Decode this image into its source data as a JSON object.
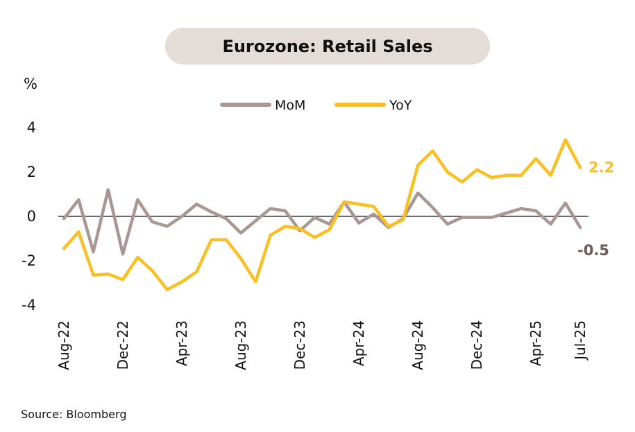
{
  "chart_data": {
    "type": "line",
    "title": "Eurozone: Retail Sales",
    "ylabel": "%",
    "ylim": [
      -4,
      4
    ],
    "yticks": [
      "4",
      "2",
      "0",
      "-2",
      "-4"
    ],
    "x": [
      "Aug-22",
      "Sep-22",
      "Oct-22",
      "Nov-22",
      "Dec-22",
      "Jan-23",
      "Feb-23",
      "Mar-23",
      "Apr-23",
      "May-23",
      "Jun-23",
      "Jul-23",
      "Aug-23",
      "Sep-23",
      "Oct-23",
      "Nov-23",
      "Dec-23",
      "Jan-24",
      "Feb-24",
      "Mar-24",
      "Apr-24",
      "May-24",
      "Jun-24",
      "Jul-24",
      "Aug-24",
      "Sep-24",
      "Oct-24",
      "Nov-24",
      "Dec-24",
      "Jan-25",
      "Feb-25",
      "Mar-25",
      "Apr-25",
      "May-25",
      "Jun-25",
      "Jul-25"
    ],
    "xtick_labels": [
      "Aug-22",
      "Dec-22",
      "Apr-23",
      "Aug-23",
      "Dec-23",
      "Apr-24",
      "Aug-24",
      "Dec-24",
      "Apr-25",
      "Jul-25"
    ],
    "series": [
      {
        "name": "MoM",
        "color": "#a89792",
        "values": [
          -0.1,
          0.75,
          -1.6,
          1.2,
          -1.7,
          0.75,
          -0.25,
          -0.45,
          0.0,
          0.55,
          0.2,
          -0.1,
          -0.75,
          -0.2,
          0.35,
          0.25,
          -0.65,
          -0.05,
          -0.35,
          0.65,
          -0.3,
          0.1,
          -0.5,
          -0.1,
          1.05,
          0.4,
          -0.35,
          -0.05,
          -0.05,
          -0.05,
          0.15,
          0.35,
          0.25,
          -0.35,
          0.6,
          -0.5
        ]
      },
      {
        "name": "YoY",
        "color": "#fbbf24",
        "values": [
          -1.45,
          -0.7,
          -2.65,
          -2.6,
          -2.85,
          -1.85,
          -2.45,
          -3.3,
          -2.95,
          -2.5,
          -1.05,
          -1.05,
          -1.9,
          -2.95,
          -0.85,
          -0.45,
          -0.55,
          -0.95,
          -0.6,
          0.65,
          0.55,
          0.45,
          -0.45,
          -0.15,
          2.3,
          2.95,
          2.0,
          1.55,
          2.1,
          1.75,
          1.85,
          1.85,
          2.6,
          1.85,
          3.45,
          2.2
        ]
      }
    ],
    "end_labels": {
      "yoy": "2.2",
      "mom": "-0.5"
    },
    "legend": "top-center"
  },
  "source": "Source: Bloomberg"
}
